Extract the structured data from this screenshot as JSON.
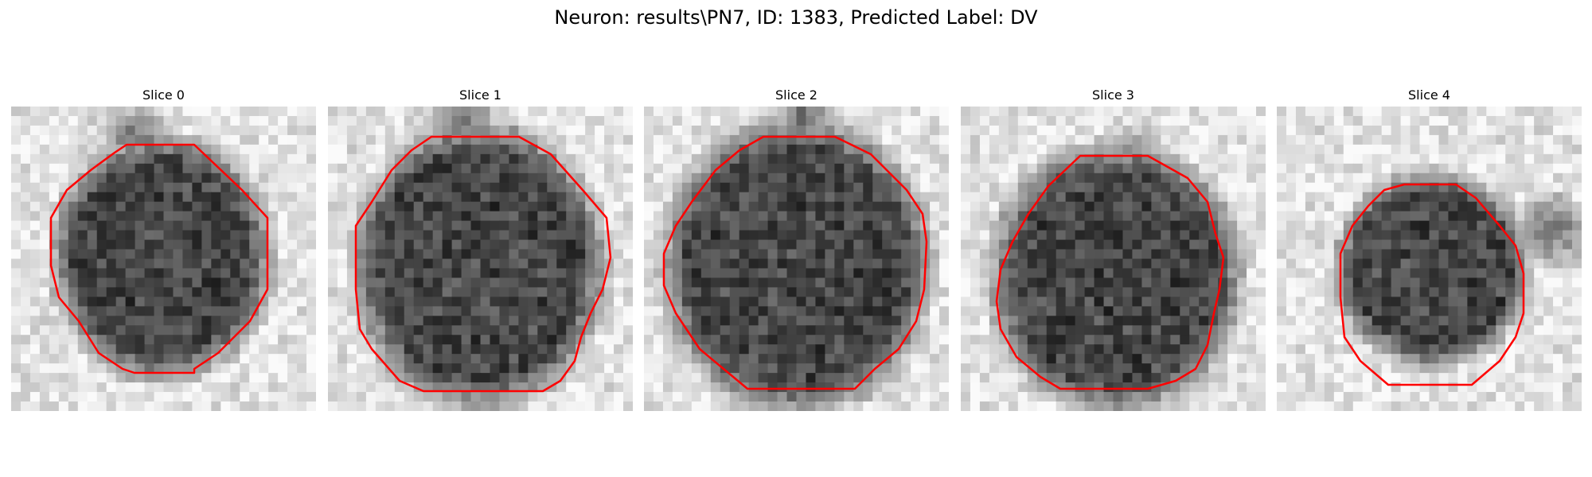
{
  "figure": {
    "title": "Neuron: results\\PN7, ID: 1383, Predicted Label: DV"
  },
  "colors": {
    "contour": "#ff0000",
    "background": "#ffffff",
    "image_colormap": "grayscale"
  },
  "slices": [
    {
      "title": "Slice 0"
    },
    {
      "title": "Slice 1"
    },
    {
      "title": "Slice 2"
    },
    {
      "title": "Slice 3"
    },
    {
      "title": "Slice 4"
    }
  ]
}
